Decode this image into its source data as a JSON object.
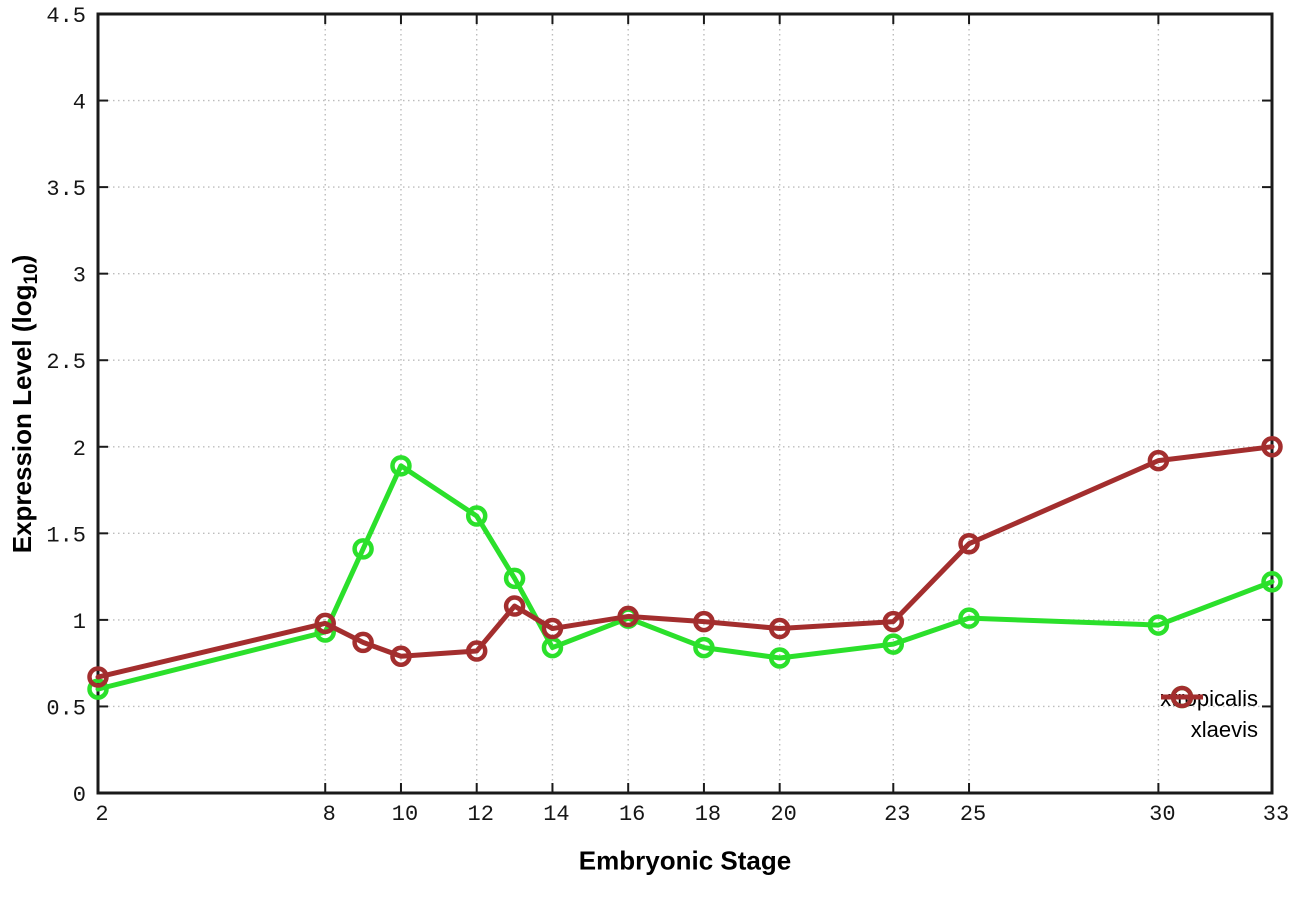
{
  "chart_data": {
    "type": "line",
    "title": "",
    "xlabel": "Embryonic Stage",
    "ylabel": "Expression Level (log10)",
    "ylabel_parts": {
      "prefix": "Expression Level (log",
      "sub": "10",
      "suffix": ")"
    },
    "x": [
      2,
      8,
      9,
      10,
      12,
      13,
      14,
      16,
      18,
      20,
      23,
      25,
      30,
      33
    ],
    "series": [
      {
        "name": "xtropicalis",
        "color": "#2be02b",
        "marker": "open-circle",
        "values": [
          0.6,
          0.93,
          1.41,
          1.89,
          1.6,
          1.24,
          0.84,
          1.01,
          0.84,
          0.78,
          0.86,
          1.01,
          0.97,
          1.22
        ]
      },
      {
        "name": "xlaevis",
        "color": "#a32e2e",
        "marker": "open-circle",
        "values": [
          0.67,
          0.98,
          0.87,
          0.79,
          0.82,
          1.08,
          0.95,
          1.02,
          0.99,
          0.95,
          0.99,
          1.44,
          1.92,
          2.0
        ]
      }
    ],
    "xlim": [
      2,
      33
    ],
    "ylim": [
      0,
      4.5
    ],
    "xticks": {
      "values": [
        2,
        8,
        10,
        12,
        14,
        16,
        18,
        20,
        23,
        25,
        30,
        33
      ],
      "labels": [
        "2",
        "8",
        "10",
        "12",
        "14",
        "16",
        "18",
        "20",
        "23",
        "25",
        "30",
        "33"
      ]
    },
    "yticks": {
      "values": [
        0,
        0.5,
        1,
        1.5,
        2,
        2.5,
        3,
        3.5,
        4,
        4.5
      ],
      "labels": [
        "0",
        "0.5",
        "1",
        "1.5",
        "2",
        "2.5",
        "3",
        "3.5",
        "4",
        "4.5"
      ]
    },
    "grid": true,
    "legend_position": "inside-bottom-right",
    "axis_color": "#1a1a1a",
    "grid_color": "#bcbcbc",
    "background": "#ffffff"
  }
}
